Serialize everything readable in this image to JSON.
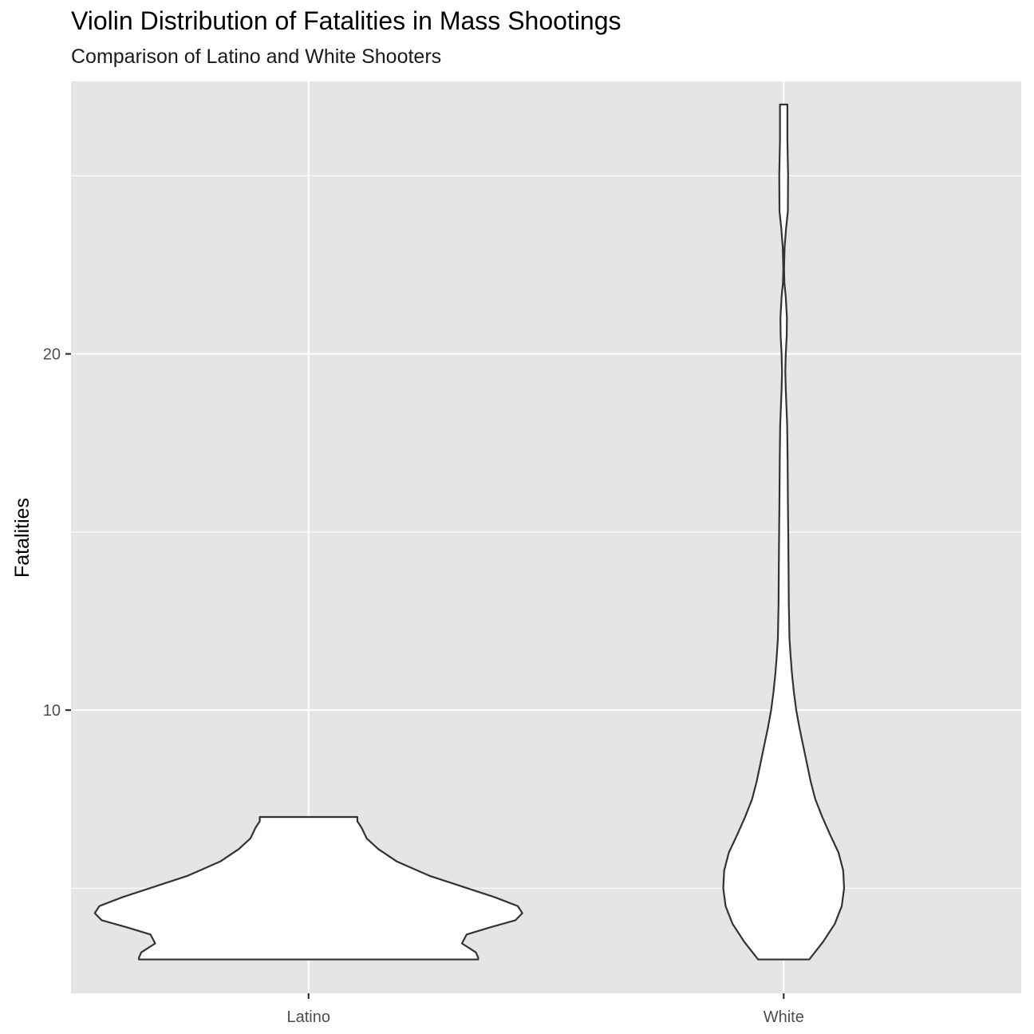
{
  "chart_data": {
    "type": "violin",
    "title": "Violin Distribution of Fatalities in Mass Shootings",
    "subtitle": "Comparison of Latino and White Shooters",
    "xlabel": "",
    "ylabel": "Fatalities",
    "categories": [
      "Latino",
      "White"
    ],
    "ylim": [
      2.05,
      27.65
    ],
    "y_ticks": [
      10,
      20
    ],
    "y_minor_ticks": [
      5,
      15,
      25
    ],
    "grid": true,
    "panel_background": "#e5e5e5",
    "grid_color": "#ffffff",
    "violin_fill": "#ffffff",
    "violin_outline": "#333333",
    "violins": [
      {
        "category": "Latino",
        "min": 3,
        "max": 7,
        "profile": [
          [
            3.0,
            0.365
          ],
          [
            3.05,
            0.365
          ],
          [
            3.2,
            0.36
          ],
          [
            3.45,
            0.33
          ],
          [
            3.7,
            0.34
          ],
          [
            3.9,
            0.39
          ],
          [
            4.1,
            0.445
          ],
          [
            4.3,
            0.46
          ],
          [
            4.5,
            0.45
          ],
          [
            4.75,
            0.4
          ],
          [
            5.05,
            0.33
          ],
          [
            5.35,
            0.26
          ],
          [
            5.75,
            0.19
          ],
          [
            6.1,
            0.15
          ],
          [
            6.4,
            0.125
          ],
          [
            6.7,
            0.114
          ],
          [
            6.88,
            0.105
          ],
          [
            7.0,
            0.105
          ]
        ]
      },
      {
        "category": "White",
        "min": 3,
        "max": 27,
        "profile": [
          [
            3,
            0.055
          ],
          [
            3.5,
            0.085
          ],
          [
            4,
            0.11
          ],
          [
            4.5,
            0.125
          ],
          [
            5,
            0.13
          ],
          [
            5.5,
            0.128
          ],
          [
            6,
            0.118
          ],
          [
            6.5,
            0.1
          ],
          [
            7,
            0.083
          ],
          [
            7.5,
            0.068
          ],
          [
            8,
            0.058
          ],
          [
            8.5,
            0.05
          ],
          [
            9,
            0.042
          ],
          [
            9.5,
            0.034
          ],
          [
            10,
            0.027
          ],
          [
            10.5,
            0.022
          ],
          [
            11,
            0.018
          ],
          [
            11.5,
            0.015
          ],
          [
            12,
            0.0125
          ],
          [
            13,
            0.011
          ],
          [
            14,
            0.0105
          ],
          [
            15,
            0.0098
          ],
          [
            16,
            0.009
          ],
          [
            17,
            0.0085
          ],
          [
            18,
            0.0075
          ],
          [
            19,
            0.0045
          ],
          [
            19.5,
            0.0035
          ],
          [
            20,
            0.0045
          ],
          [
            20.5,
            0.0065
          ],
          [
            21,
            0.007
          ],
          [
            21.6,
            0.0045
          ],
          [
            22,
            0.0015
          ],
          [
            22.4,
            0.0008
          ],
          [
            23,
            0.002
          ],
          [
            23.5,
            0.005
          ],
          [
            24,
            0.009
          ],
          [
            25,
            0.0095
          ],
          [
            26,
            0.008
          ],
          [
            27,
            0.008
          ]
        ]
      }
    ]
  }
}
